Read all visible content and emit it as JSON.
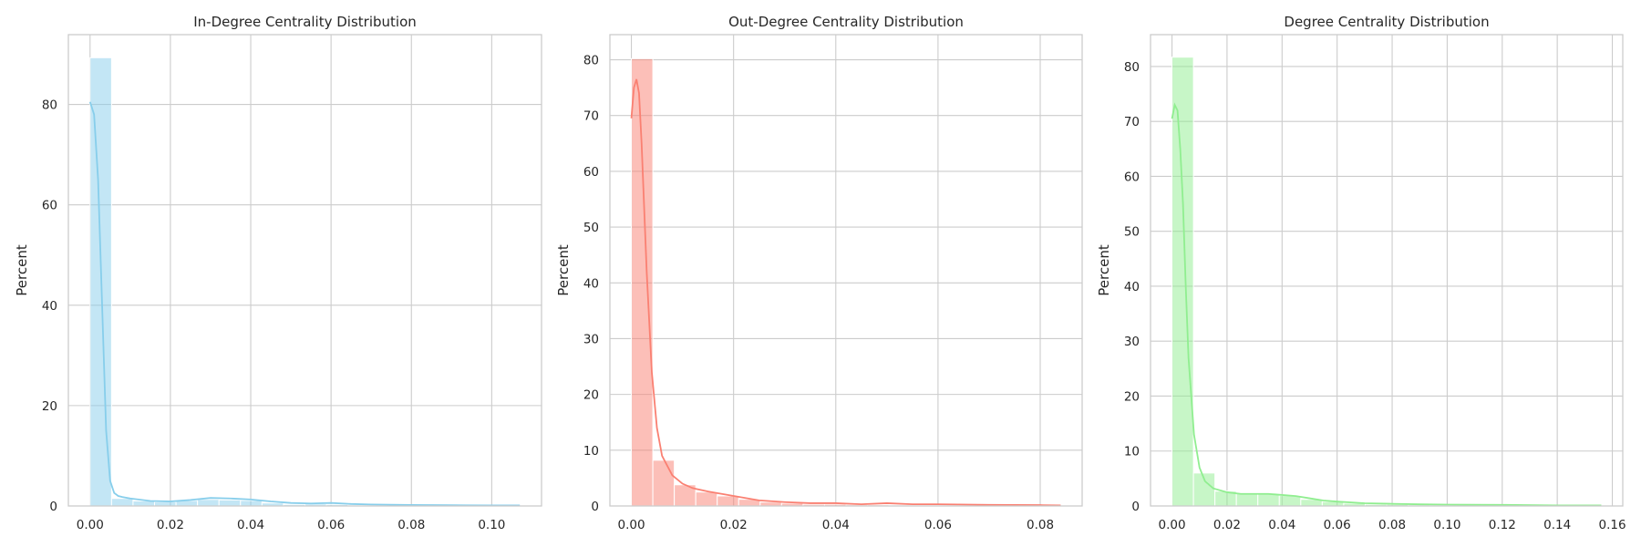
{
  "chart_data": [
    {
      "type": "bar",
      "title": "In-Degree Centrality Distribution",
      "xlabel": "",
      "ylabel": "Percent",
      "color": "#87ceeb",
      "xlim": [
        -0.0054,
        0.1124
      ],
      "ylim": [
        0,
        93.9
      ],
      "xticks": [
        0.0,
        0.02,
        0.04,
        0.06,
        0.08,
        0.1
      ],
      "xtick_labels": [
        "0.00",
        "0.02",
        "0.04",
        "0.06",
        "0.08",
        "0.10"
      ],
      "yticks": [
        0,
        20,
        40,
        60,
        80
      ],
      "ytick_labels": [
        "0",
        "20",
        "40",
        "60",
        "80"
      ],
      "bin_edges": [
        0.0,
        0.00535,
        0.0107,
        0.01605,
        0.0214,
        0.02675,
        0.0321,
        0.03745,
        0.0428,
        0.04815,
        0.0535,
        0.05885,
        0.0642,
        0.06955,
        0.0749,
        0.08025,
        0.0856,
        0.09095,
        0.0963,
        0.10165,
        0.107
      ],
      "values": [
        89.3,
        1.5,
        1.0,
        0.8,
        1.1,
        1.3,
        1.2,
        1.1,
        0.6,
        0.3,
        0.4,
        0.3,
        0.1,
        0.1,
        0.05,
        0.05,
        0.05,
        0.05,
        0.05,
        0.05
      ],
      "kde": {
        "x": [
          0.0,
          0.001,
          0.002,
          0.003,
          0.004,
          0.005,
          0.006,
          0.007,
          0.008,
          0.01,
          0.015,
          0.02,
          0.025,
          0.03,
          0.035,
          0.04,
          0.045,
          0.05,
          0.055,
          0.06,
          0.065,
          0.07,
          0.08,
          0.09,
          0.1,
          0.107
        ],
        "y": [
          80.5,
          78,
          65,
          40,
          15,
          5,
          2.6,
          2.0,
          1.8,
          1.5,
          1.0,
          0.9,
          1.2,
          1.6,
          1.5,
          1.3,
          0.9,
          0.6,
          0.5,
          0.6,
          0.4,
          0.3,
          0.2,
          0.15,
          0.1,
          0.1
        ]
      }
    },
    {
      "type": "bar",
      "title": "Out-Degree Centrality Distribution",
      "xlabel": "",
      "ylabel": "Percent",
      "color": "#fa8072",
      "xlim": [
        -0.0042,
        0.0882
      ],
      "ylim": [
        0,
        84.5
      ],
      "xticks": [
        0.0,
        0.02,
        0.04,
        0.06,
        0.08
      ],
      "xtick_labels": [
        "0.00",
        "0.02",
        "0.04",
        "0.06",
        "0.08"
      ],
      "yticks": [
        0,
        10,
        20,
        30,
        40,
        50,
        60,
        70,
        80
      ],
      "ytick_labels": [
        "0",
        "10",
        "20",
        "30",
        "40",
        "50",
        "60",
        "70",
        "80"
      ],
      "bin_edges": [
        0.0,
        0.0042,
        0.0084,
        0.0126,
        0.0168,
        0.021,
        0.0252,
        0.0294,
        0.0336,
        0.0378,
        0.042,
        0.0462,
        0.0504,
        0.0546,
        0.0588,
        0.063,
        0.0672,
        0.0714,
        0.0756,
        0.0798,
        0.084
      ],
      "values": [
        80.2,
        8.2,
        3.8,
        2.5,
        1.8,
        1.2,
        0.7,
        0.5,
        0.3,
        0.3,
        0.2,
        0.2,
        0.15,
        0.1,
        0.1,
        0.05,
        0.05,
        0.05,
        0.05,
        0.05
      ],
      "kde": {
        "x": [
          0.0,
          0.0005,
          0.001,
          0.0015,
          0.002,
          0.003,
          0.004,
          0.005,
          0.006,
          0.008,
          0.01,
          0.012,
          0.015,
          0.02,
          0.025,
          0.03,
          0.035,
          0.04,
          0.045,
          0.05,
          0.055,
          0.06,
          0.07,
          0.08,
          0.084
        ],
        "y": [
          69.5,
          75,
          76.5,
          74,
          65,
          42,
          24,
          14,
          9,
          5.5,
          4.0,
          3.2,
          2.6,
          1.8,
          1.0,
          0.7,
          0.5,
          0.5,
          0.3,
          0.5,
          0.3,
          0.3,
          0.2,
          0.15,
          0.1
        ]
      }
    },
    {
      "type": "bar",
      "title": "Degree Centrality Distribution",
      "xlabel": "",
      "ylabel": "Percent",
      "color": "#90ee90",
      "xlim": [
        -0.0078,
        0.1638
      ],
      "ylim": [
        0,
        85.8
      ],
      "xticks": [
        0.0,
        0.02,
        0.04,
        0.06,
        0.08,
        0.1,
        0.12,
        0.14,
        0.16
      ],
      "xtick_labels": [
        "0.00",
        "0.02",
        "0.04",
        "0.06",
        "0.08",
        "0.10",
        "0.12",
        "0.14",
        "0.16"
      ],
      "yticks": [
        0,
        10,
        20,
        30,
        40,
        50,
        60,
        70,
        80
      ],
      "ytick_labels": [
        "0",
        "10",
        "20",
        "30",
        "40",
        "50",
        "60",
        "70",
        "80"
      ],
      "bin_edges": [
        0.0,
        0.0078,
        0.0156,
        0.0234,
        0.0312,
        0.039,
        0.0468,
        0.0546,
        0.0624,
        0.0702,
        0.078,
        0.0858,
        0.0936,
        0.1014,
        0.1092,
        0.117,
        0.1248,
        0.1326,
        0.1404,
        0.1482,
        0.156
      ],
      "values": [
        81.7,
        6.0,
        2.7,
        2.3,
        2.2,
        1.9,
        1.2,
        0.8,
        0.5,
        0.3,
        0.3,
        0.2,
        0.15,
        0.1,
        0.1,
        0.05,
        0.05,
        0.05,
        0.05,
        0.05
      ],
      "kde": {
        "x": [
          0.0,
          0.001,
          0.002,
          0.003,
          0.004,
          0.005,
          0.006,
          0.008,
          0.01,
          0.012,
          0.015,
          0.02,
          0.025,
          0.03,
          0.035,
          0.04,
          0.045,
          0.05,
          0.055,
          0.06,
          0.07,
          0.08,
          0.09,
          0.1,
          0.12,
          0.14,
          0.156
        ],
        "y": [
          70.5,
          73,
          72,
          65,
          55,
          40,
          27,
          13,
          7,
          4.5,
          3.2,
          2.5,
          2.2,
          2.2,
          2.2,
          2.0,
          1.8,
          1.4,
          1.0,
          0.8,
          0.5,
          0.4,
          0.3,
          0.25,
          0.2,
          0.1,
          0.1
        ]
      }
    }
  ]
}
